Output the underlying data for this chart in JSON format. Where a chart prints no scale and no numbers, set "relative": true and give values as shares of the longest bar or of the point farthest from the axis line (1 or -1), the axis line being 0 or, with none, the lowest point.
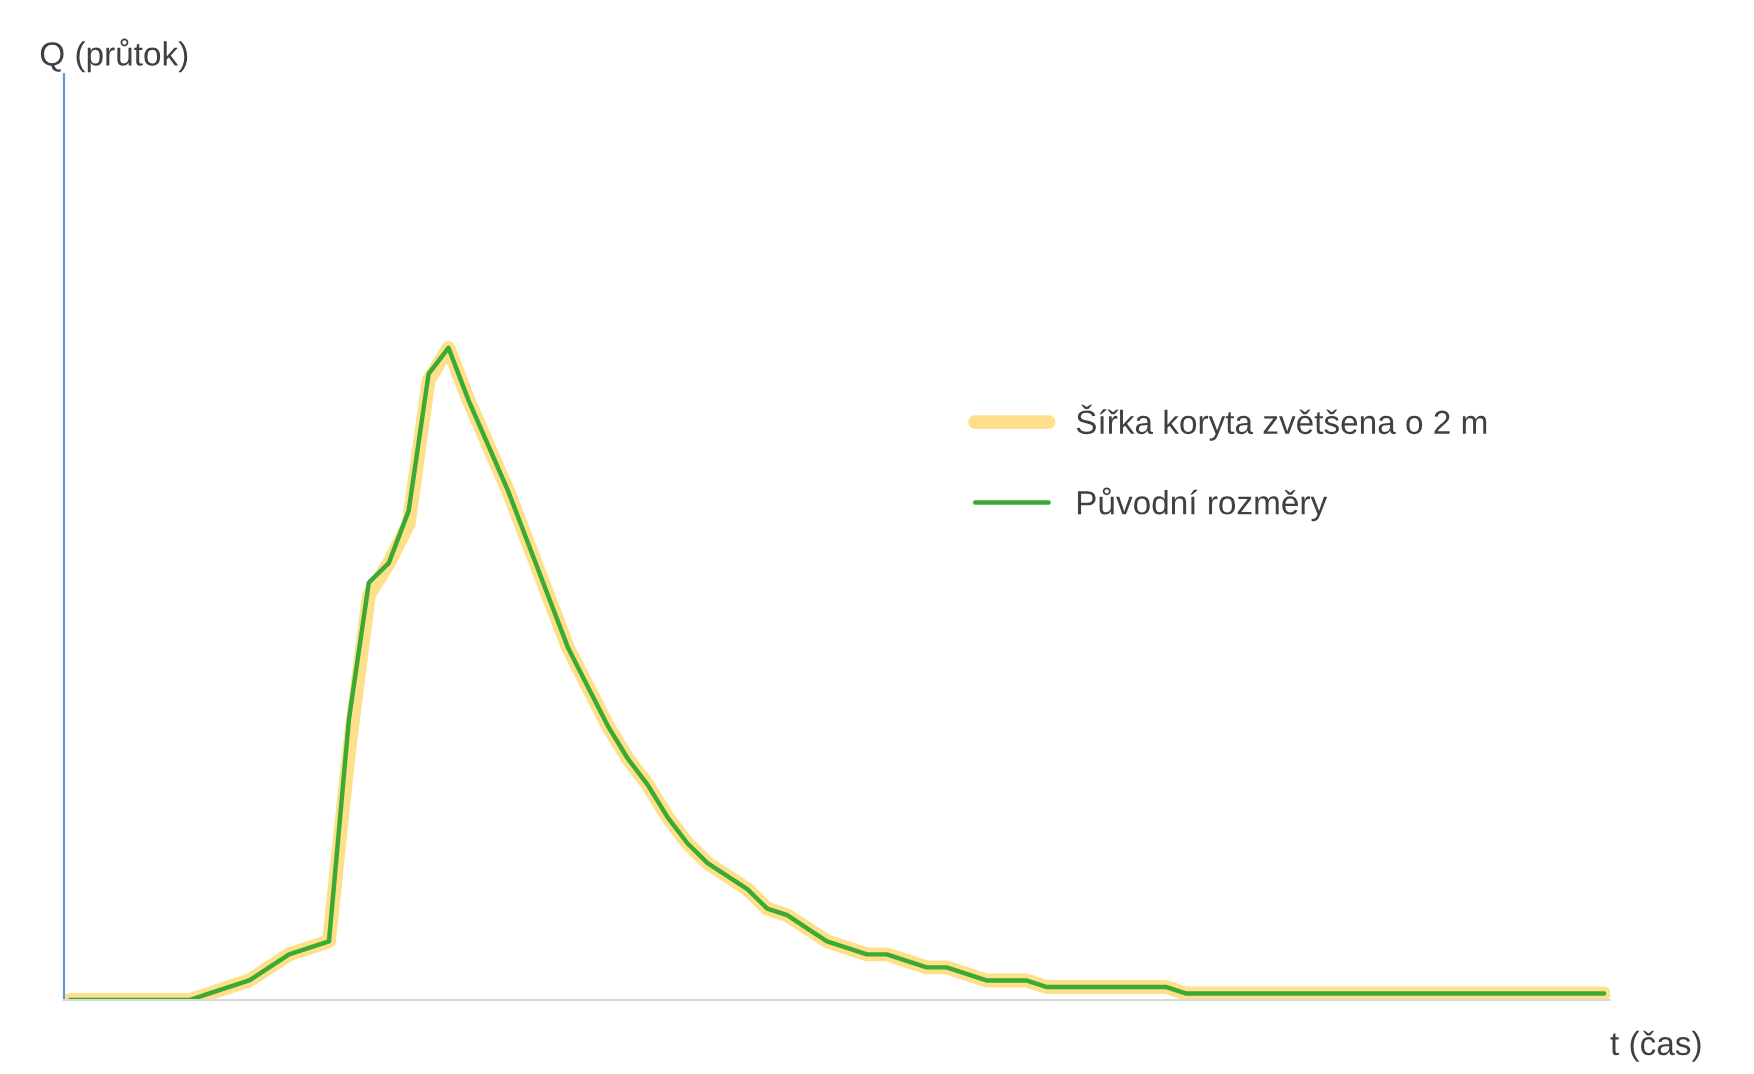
{
  "chart_data": {
    "type": "line",
    "relative": true,
    "xlabel": "t (čas)",
    "annotations": [
      "Q (průtok)"
    ],
    "legend": "right",
    "grid": false,
    "marker": "none",
    "line_style": "solid",
    "categories": [
      null,
      null,
      null,
      null,
      null,
      null,
      null,
      null,
      null,
      null,
      null,
      null,
      null,
      null,
      null,
      null,
      null,
      null,
      null,
      null,
      null,
      null,
      null,
      null,
      null,
      null,
      null,
      null,
      null,
      null,
      null,
      null,
      null,
      null,
      null,
      null,
      null,
      null,
      null,
      null,
      null,
      null,
      null,
      null,
      null,
      null,
      null,
      null,
      null,
      null,
      null,
      null,
      null,
      null,
      null,
      null,
      null,
      null,
      null,
      null,
      null,
      null,
      null,
      null,
      null,
      null,
      null,
      null,
      null,
      null,
      null,
      null,
      null,
      null,
      null,
      null,
      null,
      null
    ],
    "series": [
      {
        "name": "Šířka koryta zvětšena o 2 m",
        "color": "#ffe08a",
        "values": [
          0,
          0,
          0,
          0,
          0,
          0,
          0,
          0.01,
          0.02,
          0.03,
          0.05,
          0.07,
          0.08,
          0.09,
          0.38,
          0.62,
          0.67,
          0.73,
          0.95,
          1.0,
          0.92,
          0.85,
          0.78,
          0.7,
          0.62,
          0.54,
          0.48,
          0.42,
          0.37,
          0.33,
          0.28,
          0.24,
          0.21,
          0.19,
          0.17,
          0.14,
          0.13,
          0.11,
          0.09,
          0.08,
          0.07,
          0.07,
          0.06,
          0.05,
          0.05,
          0.04,
          0.03,
          0.03,
          0.03,
          0.02,
          0.02,
          0.02,
          0.02,
          0.02,
          0.02,
          0.02,
          0.01,
          0.01,
          0.01,
          0.01,
          0.01,
          0.01,
          0.01,
          0.01,
          0.01,
          0.01,
          0.01,
          0.01,
          0.01,
          0.01,
          0.01,
          0.01,
          0.01,
          0.01,
          0.01,
          0.01,
          0.01,
          0.01
        ]
      },
      {
        "name": "Původní rozměry",
        "color": "#3aaa35",
        "values": [
          0,
          0,
          0,
          0,
          0,
          0,
          0,
          0.01,
          0.02,
          0.03,
          0.05,
          0.07,
          0.08,
          0.09,
          0.43,
          0.64,
          0.67,
          0.75,
          0.96,
          1.0,
          0.92,
          0.85,
          0.78,
          0.7,
          0.62,
          0.54,
          0.48,
          0.42,
          0.37,
          0.33,
          0.28,
          0.24,
          0.21,
          0.19,
          0.17,
          0.14,
          0.13,
          0.11,
          0.09,
          0.08,
          0.07,
          0.07,
          0.06,
          0.05,
          0.05,
          0.04,
          0.03,
          0.03,
          0.03,
          0.02,
          0.02,
          0.02,
          0.02,
          0.02,
          0.02,
          0.02,
          0.01,
          0.01,
          0.01,
          0.01,
          0.01,
          0.01,
          0.01,
          0.01,
          0.01,
          0.01,
          0.01,
          0.01,
          0.01,
          0.01,
          0.01,
          0.01,
          0.01,
          0.01,
          0.01,
          0.01,
          0.01,
          0.01
        ]
      }
    ]
  }
}
